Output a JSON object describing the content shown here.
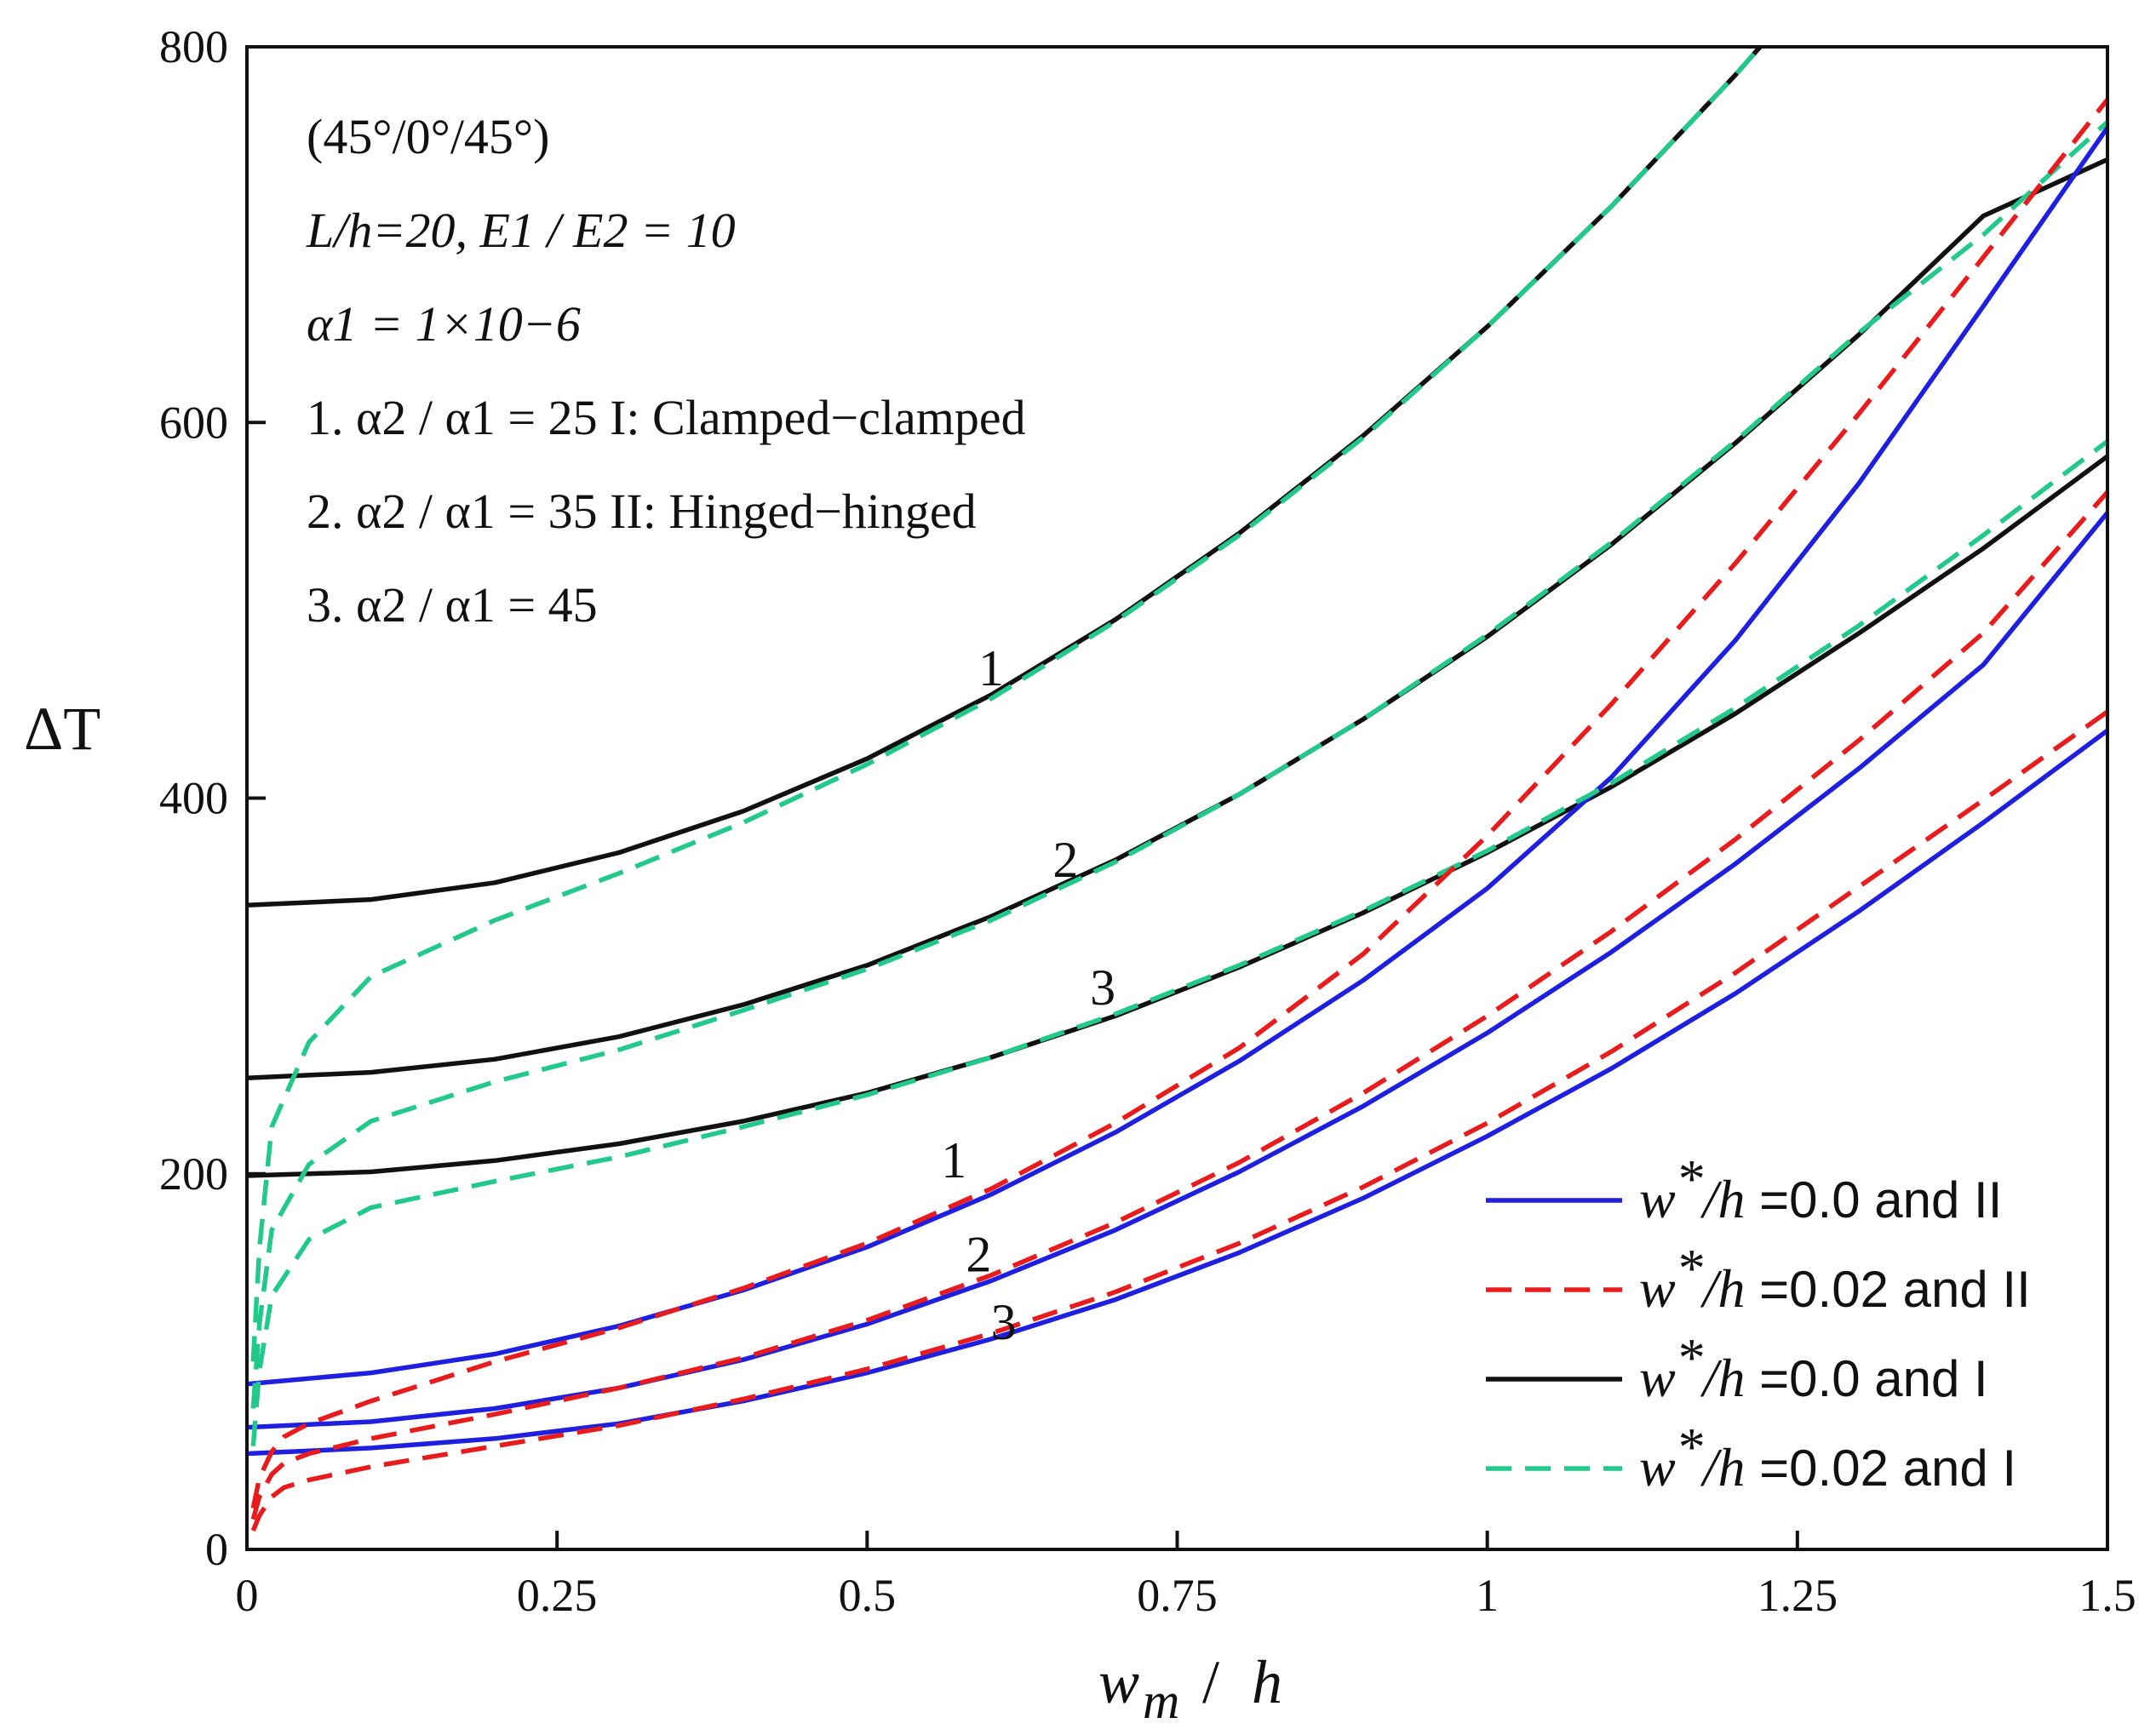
{
  "chart_data": {
    "type": "line",
    "title": "",
    "xlabel": "w_m / h",
    "ylabel": "ΔT",
    "xlim": [
      0,
      1.5
    ],
    "ylim": [
      0,
      800
    ],
    "xticks": [
      0,
      0.25,
      0.5,
      0.75,
      1,
      1.25,
      1.5
    ],
    "xtick_labels": [
      "0",
      "0.25",
      "0.5",
      "0.75",
      "1",
      "1.25",
      "1.5"
    ],
    "yticks": [
      0,
      200,
      400,
      600,
      800
    ],
    "ytick_labels": [
      "0",
      "200",
      "400",
      "600",
      "800"
    ],
    "annotations": [
      "(45°/0°/45°)",
      "L/h=20,  E1 / E2 = 10",
      "α1 = 1×10−6",
      "1. α2 / α1 = 25   I: Clamped−clamped",
      "2. α2 / α1 = 35   II: Hinged−hinged",
      "3. α2 / α1 = 45"
    ],
    "curve_labels": [
      {
        "text": "1",
        "x": 0.6,
        "y": 460
      },
      {
        "text": "2",
        "x": 0.66,
        "y": 358
      },
      {
        "text": "3",
        "x": 0.69,
        "y": 290
      },
      {
        "text": "1",
        "x": 0.57,
        "y": 198
      },
      {
        "text": "2",
        "x": 0.59,
        "y": 148
      },
      {
        "text": "3",
        "x": 0.61,
        "y": 112
      }
    ],
    "legend": [
      {
        "prefix": "w",
        "sup": "*",
        "mid": "/h",
        "rest": " =0.0 and II",
        "color": "#1f1fe0",
        "dash": "solid"
      },
      {
        "prefix": "w",
        "sup": "*",
        "mid": "/h",
        "rest": " =0.02 and II",
        "color": "#e81c1c",
        "dash": "dashed"
      },
      {
        "prefix": "w",
        "sup": "*",
        "mid": "/h",
        "rest": " =0.0 and I",
        "color": "#111111",
        "dash": "solid"
      },
      {
        "prefix": "w",
        "sup": "*",
        "mid": "/h",
        "rest": " =0.02 and I",
        "color": "#22c98a",
        "dash": "dashed"
      }
    ],
    "legend_position": "bottom-right",
    "series": [
      {
        "name": "I-1 perfect",
        "group": "w*/h =0.0 and I",
        "color": "#111111",
        "dash": "solid",
        "x": [
          0,
          0.1,
          0.2,
          0.3,
          0.4,
          0.5,
          0.6,
          0.7,
          0.8,
          0.9,
          1.0,
          1.1,
          1.2,
          1.22
        ],
        "y": [
          343,
          346,
          355,
          371,
          393,
          421,
          455,
          495,
          541,
          593,
          651,
          715,
          785,
          800
        ]
      },
      {
        "name": "I-1 imperfect",
        "group": "w*/h =0.02 and I",
        "color": "#22c98a",
        "dash": "dashed",
        "x": [
          0.005,
          0.01,
          0.02,
          0.05,
          0.1,
          0.2,
          0.3,
          0.4,
          0.5,
          0.6,
          0.7,
          0.8,
          0.9,
          1.0,
          1.1,
          1.2,
          1.22
        ],
        "y": [
          100,
          160,
          225,
          270,
          305,
          335,
          360,
          387,
          418,
          453,
          494,
          540,
          592,
          651,
          715,
          785,
          800
        ]
      },
      {
        "name": "I-2 perfect",
        "group": "w*/h =0.0 and I",
        "color": "#111111",
        "dash": "solid",
        "x": [
          0,
          0.1,
          0.2,
          0.3,
          0.4,
          0.5,
          0.6,
          0.7,
          0.8,
          0.9,
          1.0,
          1.1,
          1.2,
          1.3,
          1.4,
          1.5
        ],
        "y": [
          251,
          254,
          261,
          273,
          290,
          311,
          337,
          367,
          402,
          442,
          486,
          535,
          589,
          647,
          710,
          740
        ]
      },
      {
        "name": "I-2 imperfect",
        "group": "w*/h =0.02 and I",
        "color": "#22c98a",
        "dash": "dashed",
        "x": [
          0.005,
          0.01,
          0.02,
          0.05,
          0.1,
          0.2,
          0.3,
          0.4,
          0.5,
          0.6,
          0.7,
          0.8,
          0.9,
          1.0,
          1.1,
          1.2,
          1.3,
          1.4,
          1.5
        ],
        "y": [
          75,
          120,
          170,
          205,
          228,
          249,
          266,
          287,
          309,
          335,
          366,
          402,
          442,
          487,
          536,
          590,
          648,
          700,
          760
        ]
      },
      {
        "name": "I-3 perfect",
        "group": "w*/h =0.0 and I",
        "color": "#111111",
        "dash": "solid",
        "x": [
          0,
          0.1,
          0.2,
          0.3,
          0.4,
          0.5,
          0.6,
          0.7,
          0.8,
          0.9,
          1.0,
          1.1,
          1.2,
          1.3,
          1.4,
          1.5
        ],
        "y": [
          199,
          201,
          207,
          216,
          228,
          243,
          262,
          284,
          310,
          339,
          371,
          406,
          445,
          488,
          533,
          582
        ]
      },
      {
        "name": "I-3 imperfect",
        "group": "w*/h =0.02 and I",
        "color": "#22c98a",
        "dash": "dashed",
        "x": [
          0.005,
          0.01,
          0.02,
          0.05,
          0.1,
          0.2,
          0.3,
          0.4,
          0.5,
          0.6,
          0.7,
          0.8,
          0.9,
          1.0,
          1.1,
          1.2,
          1.3,
          1.4,
          1.5
        ],
        "y": [
          55,
          95,
          135,
          165,
          182,
          196,
          209,
          225,
          242,
          262,
          285,
          311,
          340,
          372,
          408,
          448,
          492,
          540,
          590
        ]
      },
      {
        "name": "II-1 perfect",
        "group": "w*/h =0.0 and II",
        "color": "#1f1fe0",
        "dash": "solid",
        "x": [
          0,
          0.1,
          0.2,
          0.3,
          0.4,
          0.5,
          0.6,
          0.7,
          0.8,
          0.9,
          1.0,
          1.1,
          1.2,
          1.3,
          1.4,
          1.5
        ],
        "y": [
          88,
          94,
          104,
          119,
          138,
          161,
          189,
          222,
          260,
          303,
          352,
          411,
          484,
          568,
          662,
          757
        ]
      },
      {
        "name": "II-1 imperfect",
        "group": "w*/h =0.02 and II",
        "color": "#e81c1c",
        "dash": "dashed",
        "x": [
          0.005,
          0.01,
          0.02,
          0.03,
          0.05,
          0.1,
          0.2,
          0.3,
          0.4,
          0.5,
          0.6,
          0.7,
          0.8,
          0.9,
          1.0,
          1.1,
          1.2,
          1.3,
          1.4,
          1.5
        ],
        "y": [
          22,
          38,
          52,
          60,
          67,
          79,
          100,
          118,
          139,
          163,
          192,
          227,
          267,
          317,
          380,
          450,
          525,
          605,
          688,
          772
        ]
      },
      {
        "name": "II-2 perfect",
        "group": "w*/h =0.0 and II",
        "color": "#1f1fe0",
        "dash": "solid",
        "x": [
          0,
          0.1,
          0.2,
          0.3,
          0.4,
          0.5,
          0.6,
          0.7,
          0.8,
          0.9,
          1.0,
          1.1,
          1.2,
          1.3,
          1.4,
          1.5
        ],
        "y": [
          65,
          68,
          75,
          86,
          101,
          120,
          143,
          170,
          201,
          236,
          275,
          318,
          365,
          416,
          471,
          552
        ]
      },
      {
        "name": "II-2 imperfect",
        "group": "w*/h =0.02 and II",
        "color": "#e81c1c",
        "dash": "dashed",
        "x": [
          0.005,
          0.01,
          0.02,
          0.03,
          0.05,
          0.1,
          0.2,
          0.3,
          0.4,
          0.5,
          0.6,
          0.7,
          0.8,
          0.9,
          1.0,
          1.1,
          1.2,
          1.3,
          1.4,
          1.5
        ],
        "y": [
          16,
          28,
          40,
          46,
          51,
          59,
          72,
          86,
          102,
          122,
          146,
          174,
          206,
          243,
          284,
          329,
          378,
          431,
          488,
          563
        ]
      },
      {
        "name": "II-3 perfect",
        "group": "w*/h =0.0 and II",
        "color": "#1f1fe0",
        "dash": "solid",
        "x": [
          0,
          0.1,
          0.2,
          0.3,
          0.4,
          0.5,
          0.6,
          0.7,
          0.8,
          0.9,
          1.0,
          1.1,
          1.2,
          1.3,
          1.4,
          1.5
        ],
        "y": [
          51,
          54,
          59,
          67,
          79,
          94,
          112,
          133,
          158,
          187,
          220,
          256,
          296,
          340,
          387,
          436
        ]
      },
      {
        "name": "II-3 imperfect",
        "group": "w*/h =0.02 and II",
        "color": "#e81c1c",
        "dash": "dashed",
        "x": [
          0.005,
          0.01,
          0.02,
          0.03,
          0.05,
          0.1,
          0.2,
          0.3,
          0.4,
          0.5,
          0.6,
          0.7,
          0.8,
          0.9,
          1.0,
          1.1,
          1.2,
          1.3,
          1.4,
          1.5
        ],
        "y": [
          10,
          18,
          28,
          33,
          37,
          44,
          55,
          66,
          80,
          96,
          115,
          137,
          163,
          193,
          227,
          265,
          307,
          353,
          399,
          446
        ]
      }
    ]
  }
}
